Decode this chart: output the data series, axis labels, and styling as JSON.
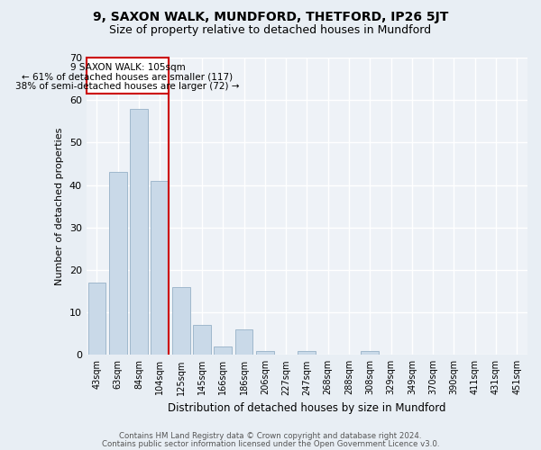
{
  "title": "9, SAXON WALK, MUNDFORD, THETFORD, IP26 5JT",
  "subtitle": "Size of property relative to detached houses in Mundford",
  "xlabel": "Distribution of detached houses by size in Mundford",
  "ylabel": "Number of detached properties",
  "bar_labels": [
    "43sqm",
    "63sqm",
    "84sqm",
    "104sqm",
    "125sqm",
    "145sqm",
    "166sqm",
    "186sqm",
    "206sqm",
    "227sqm",
    "247sqm",
    "268sqm",
    "288sqm",
    "308sqm",
    "329sqm",
    "349sqm",
    "370sqm",
    "390sqm",
    "411sqm",
    "431sqm",
    "451sqm"
  ],
  "bar_values": [
    17,
    43,
    58,
    41,
    16,
    7,
    2,
    6,
    1,
    0,
    1,
    0,
    0,
    1,
    0,
    0,
    0,
    0,
    0,
    0,
    0
  ],
  "bar_color": "#c9d9e8",
  "bar_edge_color": "#a0b8cc",
  "vline_x_index": 3,
  "marker_label": "9 SAXON WALK: 105sqm",
  "annotation_line1": "← 61% of detached houses are smaller (117)",
  "annotation_line2": "38% of semi-detached houses are larger (72) →",
  "vline_color": "#cc0000",
  "box_color": "#cc0000",
  "ylim": [
    0,
    70
  ],
  "yticks": [
    0,
    10,
    20,
    30,
    40,
    50,
    60,
    70
  ],
  "footnote1": "Contains HM Land Registry data © Crown copyright and database right 2024.",
  "footnote2": "Contains public sector information licensed under the Open Government Licence v3.0.",
  "bg_color": "#e8eef4",
  "plot_bg_color": "#eef2f7"
}
